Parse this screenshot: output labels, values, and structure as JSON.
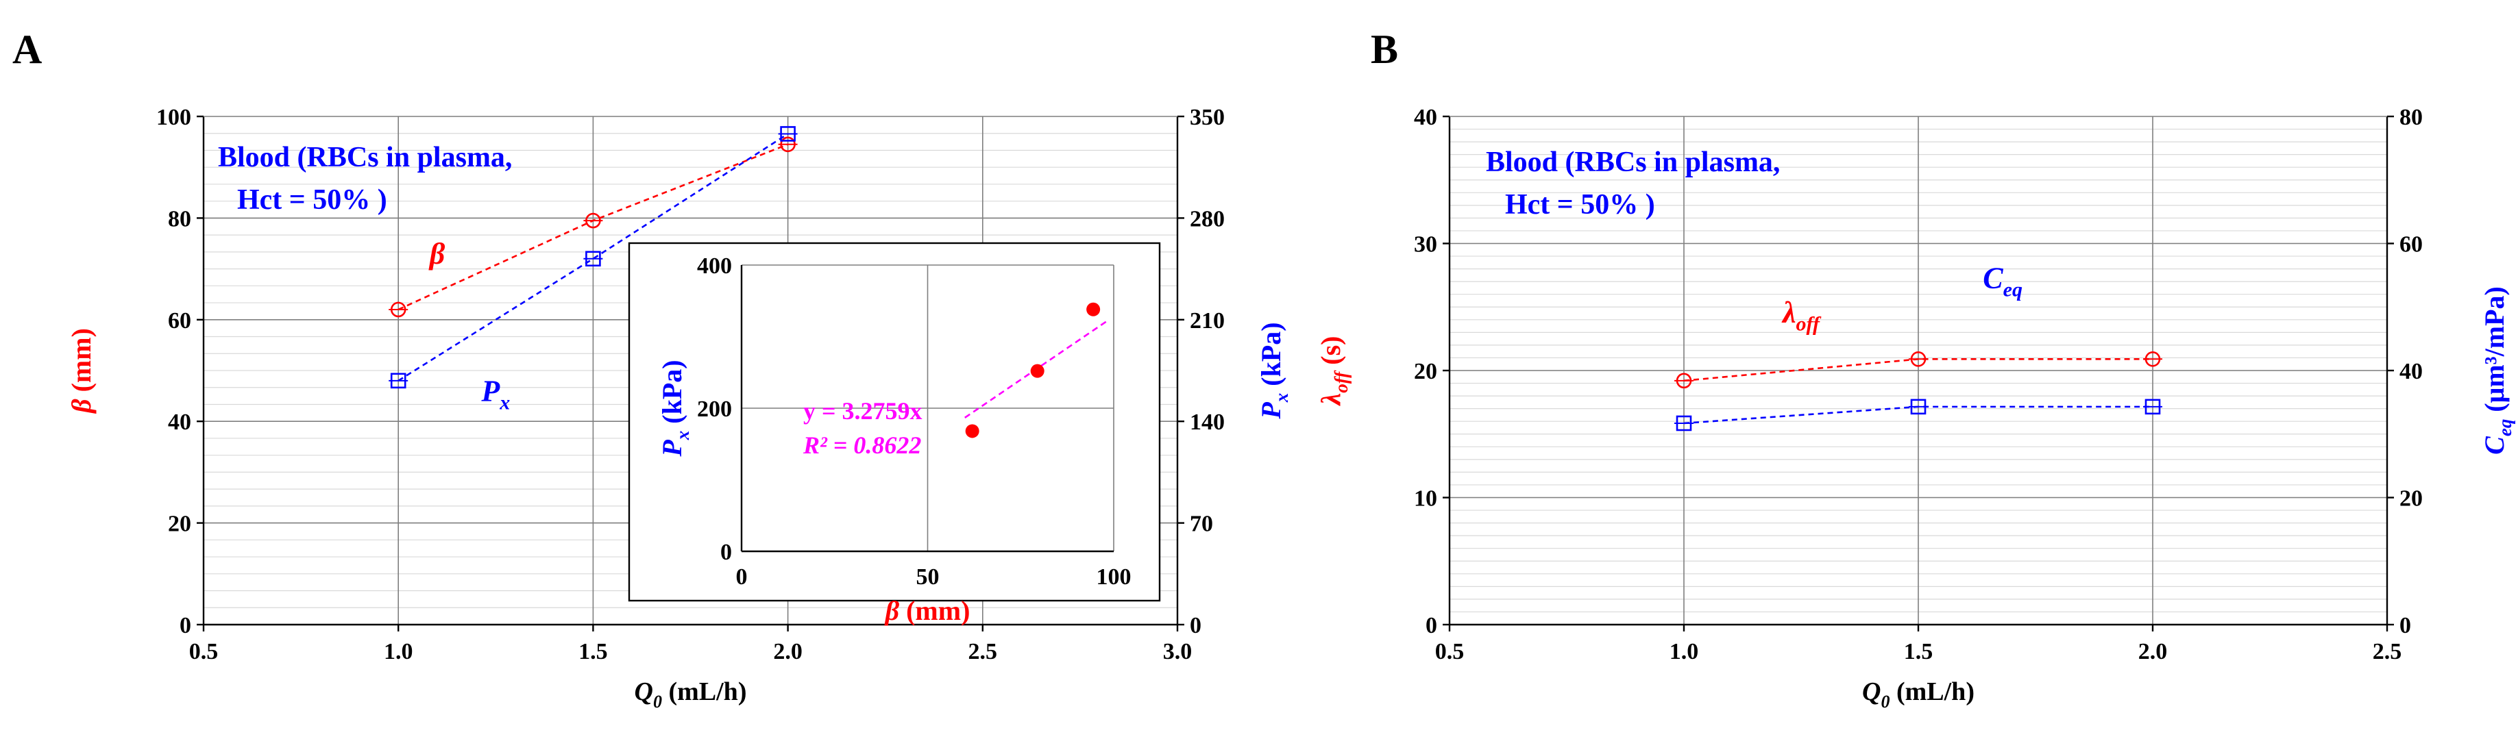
{
  "chart_data": [
    {
      "panel_label": "A",
      "type": "line",
      "xlabel": {
        "var": "Q",
        "sub": "0",
        "unit": " (mL/h)"
      },
      "ylabel_left": {
        "var": "β",
        "unit": " (mm)"
      },
      "ylabel_right": {
        "var": "P",
        "sub": "x",
        "unit": " (kPa)"
      },
      "xlim": [
        0.5,
        3.0
      ],
      "xticks": [
        "0.5",
        "1.0",
        "1.5",
        "2.0",
        "2.5",
        "3.0"
      ],
      "ylim_left": [
        0,
        100
      ],
      "yticks_left": [
        "0",
        "20",
        "40",
        "60",
        "80",
        "100"
      ],
      "ylim_right": [
        0,
        350
      ],
      "yticks_right": [
        "0",
        "70",
        "140",
        "210",
        "280",
        "350"
      ],
      "annotation": [
        "Blood (RBCs in plasma,",
        "Hct = 50% )"
      ],
      "series": [
        {
          "name": "β",
          "axis": "left",
          "color": "#ff0000",
          "marker": "circle",
          "x": [
            1.0,
            1.5,
            2.0
          ],
          "values": [
            62,
            79.5,
            94.5
          ],
          "label_at": [
            1.1,
            71
          ]
        },
        {
          "name": "P",
          "sub": "x",
          "axis": "right",
          "color": "#0000ff",
          "marker": "square",
          "x": [
            1.0,
            1.5,
            2.0
          ],
          "values": [
            168,
            252,
            338
          ],
          "label_at": [
            1.25,
            44
          ]
        }
      ],
      "inset": {
        "type": "scatter",
        "xlabel": {
          "var": "β",
          "unit": " (mm)"
        },
        "ylabel": {
          "var": "P",
          "sub": "x",
          "unit": " (kPa)"
        },
        "xlim": [
          0,
          100
        ],
        "xticks": [
          "0",
          "50",
          "100"
        ],
        "ylim": [
          0,
          400
        ],
        "yticks": [
          "0",
          "200",
          "400"
        ],
        "x": [
          62,
          79.5,
          94.5
        ],
        "y": [
          168,
          252,
          338
        ],
        "fit_equation": "y = 3.2759x",
        "r2_label": "R² = 0.8622",
        "fit_slope": 3.2759,
        "fit_color": "#ff00ff",
        "point_color": "#ff0000"
      }
    },
    {
      "panel_label": "B",
      "type": "line",
      "xlabel": {
        "var": "Q",
        "sub": "0",
        "unit": " (mL/h)"
      },
      "ylabel_left": {
        "var": "λ",
        "sub": "off",
        "unit": " (s)"
      },
      "ylabel_right": {
        "var": "C",
        "sub": "eq",
        "unit": " (μm³/mPa)"
      },
      "xlim": [
        0.5,
        2.5
      ],
      "xticks": [
        "0.5",
        "1.0",
        "1.5",
        "2.0",
        "2.5"
      ],
      "ylim_left": [
        0,
        40
      ],
      "yticks_left": [
        "0",
        "10",
        "20",
        "30",
        "40"
      ],
      "ylim_right": [
        0,
        80
      ],
      "yticks_right": [
        "0",
        "20",
        "40",
        "60",
        "80"
      ],
      "annotation": [
        "Blood (RBCs in plasma,",
        "Hct = 50% )"
      ],
      "series": [
        {
          "name": "λ",
          "sub": "off",
          "axis": "left",
          "color": "#ff0000",
          "marker": "circle",
          "x": [
            1.0,
            1.5,
            2.0
          ],
          "values": [
            19.2,
            20.9,
            20.9
          ],
          "label_at": [
            1.25,
            23.8
          ]
        },
        {
          "name": "C",
          "sub": "eq",
          "axis": "right",
          "color": "#0000ff",
          "marker": "square",
          "x": [
            1.0,
            1.5,
            2.0
          ],
          "values": [
            31.7,
            34.3,
            34.3
          ],
          "label_at": [
            1.68,
            26.5
          ]
        }
      ]
    }
  ]
}
